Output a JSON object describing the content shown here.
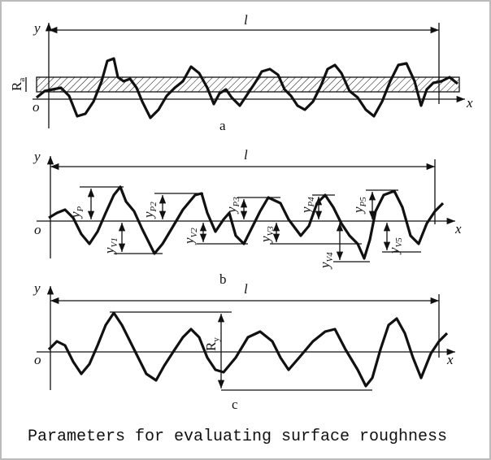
{
  "panels": [
    {
      "axis_y": "y",
      "length": "l",
      "axis_x": "x",
      "origin": "o",
      "label": "a",
      "dimensions": [
        {
          "base": "R",
          "sub": "a"
        }
      ]
    },
    {
      "axis_y": "y",
      "length": "l",
      "axis_x": "x",
      "origin": "o",
      "label": "b",
      "dimensions": [
        {
          "base": "y",
          "sub": "P"
        },
        {
          "base": "y",
          "sub": "V1"
        },
        {
          "base": "y",
          "sub": "P2"
        },
        {
          "base": "y",
          "sub": "V2"
        },
        {
          "base": "y",
          "sub": "P3"
        },
        {
          "base": "y",
          "sub": "V3"
        },
        {
          "base": "y",
          "sub": "P4"
        },
        {
          "base": "y",
          "sub": "V4"
        },
        {
          "base": "y",
          "sub": "P5"
        },
        {
          "base": "y",
          "sub": "V5"
        }
      ]
    },
    {
      "axis_y": "y",
      "length": "l",
      "axis_x": "x",
      "origin": "o",
      "label": "c",
      "dimensions": [
        {
          "base": "R",
          "sub": "y"
        }
      ]
    }
  ],
  "caption": "Parameters for evaluating surface roughness"
}
